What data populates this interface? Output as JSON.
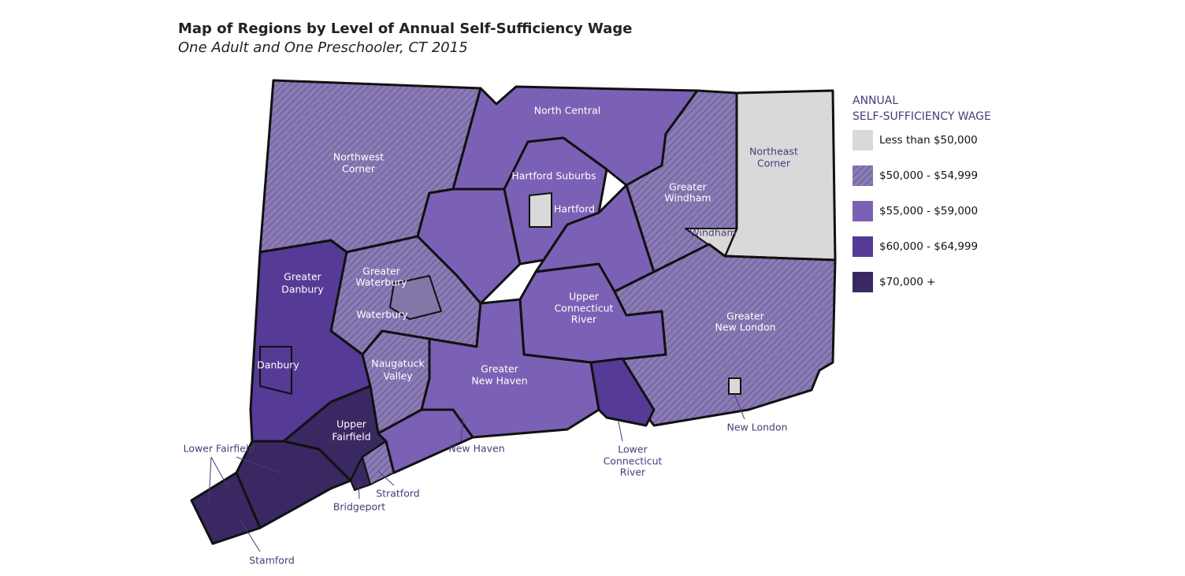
{
  "title": "Map of Regions by Level of Annual Self-Sufficiency Wage",
  "subtitle": "One Adult and One Preschooler, CT 2015",
  "legend": {
    "title": [
      "ANNUAL",
      "SELF-SUFFICIENCY WAGE"
    ],
    "items": [
      {
        "label": "Less than $50,000",
        "color": "#d9d9d9"
      },
      {
        "label": "$50,000 - $54,999",
        "color": "#8a7bb5",
        "pattern": "hatch"
      },
      {
        "label": "$55,000 - $59,000",
        "color": "#7b61b5"
      },
      {
        "label": "$60,000 - $64,999",
        "color": "#553a96"
      },
      {
        "label": "$70,000 +",
        "color": "#3a2862"
      }
    ]
  },
  "regions": [
    {
      "name": [
        "Northwest",
        "Corner"
      ],
      "color": "#8a7bb5",
      "pattern": "hatch"
    },
    {
      "name": [
        "North Central"
      ],
      "color": "#7b61b5"
    },
    {
      "name": [
        "Hartford Suburbs"
      ],
      "color": "#7b61b5"
    },
    {
      "name": [
        "Hartford"
      ],
      "color": "#d9d9d9"
    },
    {
      "name": [
        "Greater",
        "Windham"
      ],
      "color": "#8a7bb5",
      "pattern": "hatch"
    },
    {
      "name": [
        "Northeast",
        "Corner"
      ],
      "color": "#d9d9d9"
    },
    {
      "name": [
        "Windham"
      ],
      "color": "#d9d9d9"
    },
    {
      "name": [
        "Greater",
        "Waterbury"
      ],
      "color": "#8a7bb5",
      "pattern": "hatch"
    },
    {
      "name": [
        "Waterbury"
      ],
      "color": "#8477a8"
    },
    {
      "name": [
        "Greater",
        "Danbury"
      ],
      "color": "#553a96"
    },
    {
      "name": [
        "Danbury"
      ],
      "color": "#553a96"
    },
    {
      "name": [
        "Upper",
        "Connecticut",
        "River"
      ],
      "color": "#7b61b5"
    },
    {
      "name": [
        "Greater",
        "New London"
      ],
      "color": "#8a7bb5",
      "pattern": "hatch"
    },
    {
      "name": [
        "Greater",
        "New Haven"
      ],
      "color": "#7b61b5"
    },
    {
      "name": [
        "Lower",
        "Connecticut",
        "River"
      ],
      "color": "#553a96"
    },
    {
      "name": [
        "Naugatuck",
        "Valley"
      ],
      "color": "#8a7bb5",
      "pattern": "hatch"
    },
    {
      "name": [
        "Upper",
        "Fairfield"
      ],
      "color": "#3a2862"
    },
    {
      "name": [
        "Lower Fairfield"
      ],
      "color": "#3a2862"
    },
    {
      "name": [
        "Stamford"
      ],
      "color": "#3a2862"
    },
    {
      "name": [
        "Bridgeport"
      ],
      "color": "#3a2862"
    },
    {
      "name": [
        "Stratford"
      ],
      "color": "#8a7bb5",
      "pattern": "hatch"
    },
    {
      "name": [
        "New Haven"
      ],
      "color": "#7b61b5"
    },
    {
      "name": [
        "New London"
      ],
      "color": "#d9d9d9"
    }
  ]
}
